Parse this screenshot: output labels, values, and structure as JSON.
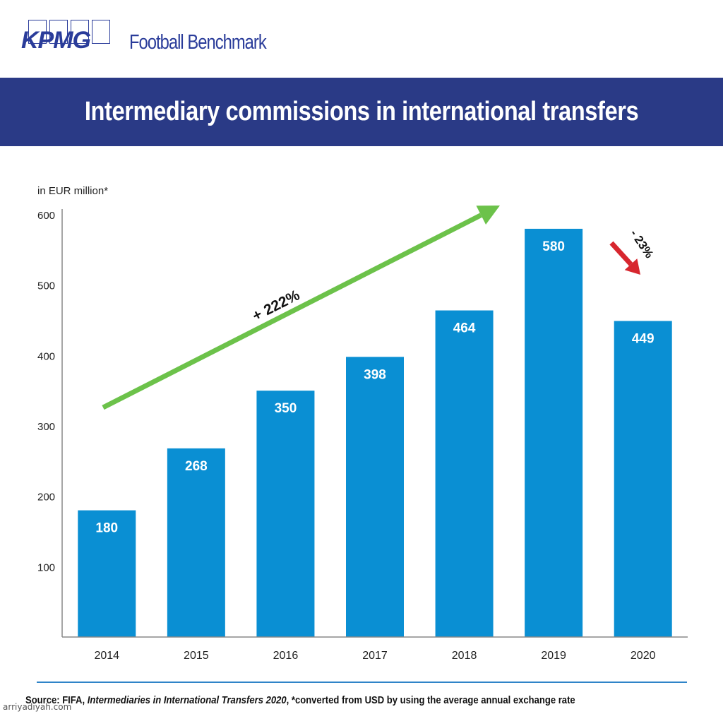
{
  "brand": {
    "logo_text": "KPMG",
    "subbrand": "Football Benchmark",
    "color": "#2a3c9a"
  },
  "header": {
    "title": "Intermediary commissions in international transfers",
    "background": "#2a3a86"
  },
  "chart_data": {
    "type": "bar",
    "title": "Intermediary commissions in international transfers",
    "ylabel": "in EUR million*",
    "xlabel": "",
    "categories": [
      "2014",
      "2015",
      "2016",
      "2017",
      "2018",
      "2019",
      "2020"
    ],
    "values": [
      180,
      268,
      350,
      398,
      464,
      580,
      449
    ],
    "value_labels": [
      "180",
      "268",
      "350",
      "398",
      "464",
      "580",
      "449"
    ],
    "ylim": [
      0,
      600
    ],
    "yticks": [
      100,
      200,
      300,
      400,
      500,
      600
    ],
    "ytick_labels": [
      "100",
      "200",
      "300",
      "400",
      "500",
      "600"
    ],
    "grid": false,
    "bar_color": "#0a8fd3",
    "annotations": [
      {
        "text": "+ 222%",
        "type": "trend-arrow",
        "color": "#6cc24a",
        "from_category": "2014",
        "to_category": "2019"
      },
      {
        "text": "- 23%",
        "type": "trend-arrow",
        "color": "#d7262e",
        "from_category": "2019",
        "to_category": "2020"
      }
    ]
  },
  "footer": {
    "source_prefix": "Source: FIFA, ",
    "source_title": "Intermediaries in International Transfers 2020",
    "source_suffix": ", *converted from USD by using the average annual exchange rate",
    "watermark": "arriyadiyah.com",
    "rule_color": "#2f84c8"
  }
}
